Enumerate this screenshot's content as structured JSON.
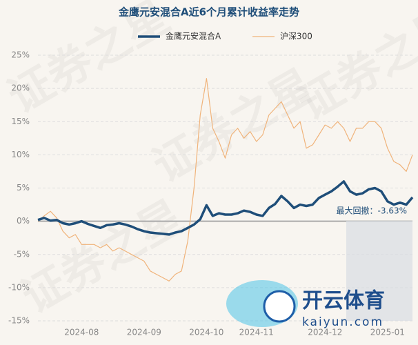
{
  "chart_data": {
    "type": "line",
    "title": "金鹰元安混合A近6个月累计收益率走势",
    "categories": [
      null,
      null,
      null,
      null,
      null,
      null,
      null,
      "2024-08",
      null,
      null,
      null,
      null,
      null,
      null,
      null,
      null,
      null,
      "2024-09",
      null,
      null,
      null,
      null,
      null,
      null,
      null,
      null,
      null,
      "2024-10",
      null,
      null,
      null,
      null,
      null,
      null,
      null,
      "2024-11",
      null,
      null,
      null,
      null,
      null,
      null,
      null,
      null,
      null,
      null,
      "2024-12",
      null,
      null,
      null,
      null,
      null,
      null,
      null,
      null,
      null,
      "2025-01",
      null,
      null,
      null,
      null
    ],
    "series": [
      {
        "name": "金鹰元安混合A",
        "color": "#1f4e79",
        "width": 3.5,
        "values": [
          0.2,
          0.5,
          0.1,
          0.2,
          -0.3,
          -0.5,
          -0.3,
          0.0,
          -0.4,
          -0.7,
          -1.0,
          -0.6,
          -0.5,
          -0.3,
          -0.5,
          -0.8,
          -1.2,
          -1.5,
          -1.7,
          -1.8,
          -1.9,
          -2.0,
          -1.7,
          -1.5,
          -1.0,
          -0.5,
          0.3,
          2.4,
          0.8,
          1.2,
          1.0,
          1.0,
          1.2,
          1.6,
          1.4,
          1.0,
          0.8,
          2.0,
          2.6,
          3.8,
          3.0,
          2.0,
          2.5,
          2.3,
          2.5,
          3.5,
          4.0,
          4.5,
          5.2,
          6.0,
          4.5,
          4.0,
          4.2,
          4.8,
          5.0,
          4.5,
          3.0,
          2.5,
          2.8,
          2.5,
          3.6
        ]
      },
      {
        "name": "沪深300",
        "color": "#f0b37a",
        "width": 1.2,
        "values": [
          0,
          0.8,
          1.5,
          0.5,
          -1.5,
          -2.5,
          -2.0,
          -3.5,
          -3.5,
          -3.5,
          -4.0,
          -3.5,
          -4.5,
          -4.0,
          -4.5,
          -5.0,
          -5.5,
          -6.0,
          -7.5,
          -8.0,
          -8.5,
          -9.0,
          -8.0,
          -7.5,
          -3.0,
          5.0,
          16.0,
          21.5,
          14.0,
          12.0,
          9.5,
          13.0,
          14.0,
          12.5,
          13.5,
          12.0,
          13.0,
          16.0,
          17.0,
          18.0,
          16.0,
          14.0,
          15.0,
          11.0,
          11.5,
          13.0,
          14.5,
          14.0,
          15.0,
          14.0,
          12.0,
          14.0,
          14.0,
          15.0,
          15.0,
          14.0,
          11.0,
          9.0,
          8.5,
          7.5,
          10.0
        ]
      }
    ],
    "ylim": [
      -15,
      25
    ],
    "yticks": [
      {
        "value": -15,
        "label": "-15%"
      },
      {
        "value": -10,
        "label": "-10%"
      },
      {
        "value": -5,
        "label": "-5%"
      },
      {
        "value": 0,
        "label": "0%"
      },
      {
        "value": 5,
        "label": "5%"
      },
      {
        "value": 10,
        "label": "10%"
      },
      {
        "value": 15,
        "label": "15%"
      },
      {
        "value": 20,
        "label": "20%"
      },
      {
        "value": 25,
        "label": "25%"
      }
    ],
    "grid": true,
    "legend": "top",
    "annotation": "最大回撤：-3.63%"
  },
  "watermark": "证券之星",
  "logo": {
    "name": "开云体育",
    "url": "kaiyun.com"
  }
}
